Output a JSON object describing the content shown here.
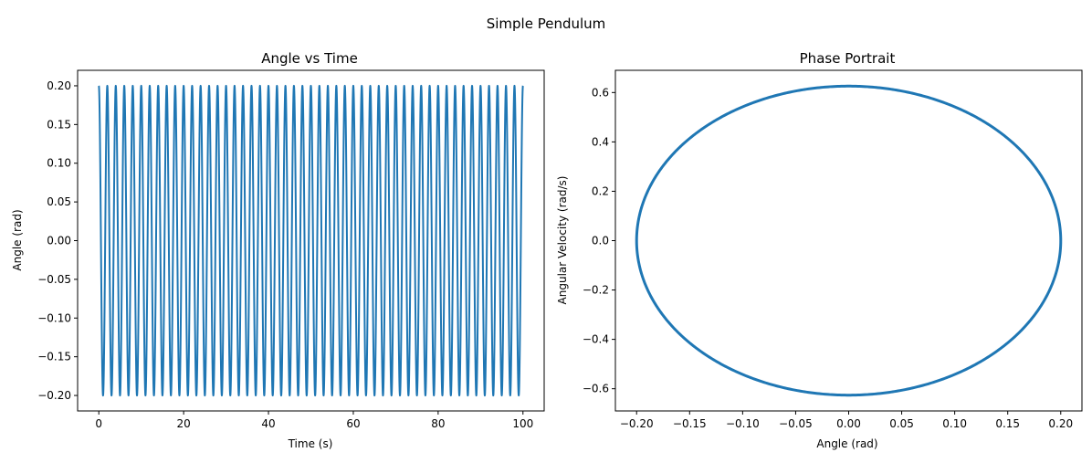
{
  "figure": {
    "suptitle": "Simple Pendulum"
  },
  "chart_data": [
    {
      "type": "line",
      "title": "Angle vs Time",
      "xlabel": "Time (s)",
      "ylabel": "Angle (rad)",
      "xlim": [
        -5,
        105
      ],
      "ylim": [
        -0.22,
        0.22
      ],
      "xticks": [
        0,
        20,
        40,
        60,
        80,
        100
      ],
      "yticks": [
        -0.2,
        -0.15,
        -0.1,
        -0.05,
        0.0,
        0.05,
        0.1,
        0.15,
        0.2
      ],
      "xtick_labels": [
        "0",
        "20",
        "40",
        "60",
        "80",
        "100"
      ],
      "ytick_labels": [
        "−0.20",
        "−0.15",
        "−0.10",
        "−0.05",
        "0.00",
        "0.05",
        "0.10",
        "0.15",
        "0.20"
      ],
      "grid": false,
      "series": [
        {
          "color": "#1f77b4",
          "amplitude": 0.2,
          "period": 2.0,
          "t_start": 0,
          "t_end": 100
        }
      ]
    },
    {
      "type": "line",
      "title": "Phase Portrait",
      "xlabel": "Angle (rad)",
      "ylabel": "Angular Velocity (rad/s)",
      "xlim": [
        -0.22,
        0.22
      ],
      "ylim": [
        -0.69,
        0.69
      ],
      "xticks": [
        -0.2,
        -0.15,
        -0.1,
        -0.05,
        0.0,
        0.05,
        0.1,
        0.15,
        0.2
      ],
      "yticks": [
        -0.6,
        -0.4,
        -0.2,
        0.0,
        0.2,
        0.4,
        0.6
      ],
      "xtick_labels": [
        "−0.20",
        "−0.15",
        "−0.10",
        "−0.05",
        "0.00",
        "0.05",
        "0.10",
        "0.15",
        "0.20"
      ],
      "ytick_labels": [
        "−0.6",
        "−0.4",
        "−0.2",
        "0.0",
        "0.2",
        "0.4",
        "0.6"
      ],
      "grid": false,
      "series": [
        {
          "color": "#1f77b4",
          "angle_amplitude": 0.2,
          "velocity_amplitude": 0.626
        }
      ]
    }
  ]
}
